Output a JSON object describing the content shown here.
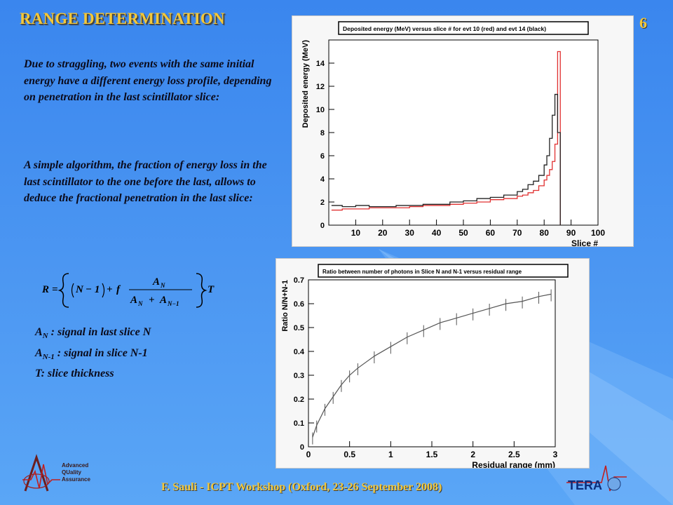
{
  "slide": {
    "title": "RANGE DETERMINATION",
    "number": "6",
    "paragraph1": "Due to straggling, two events with the same initial energy have a different energy loss profile, depending on penetration in the last scintillator slice:",
    "paragraph2": "A simple algorithm, the fraction of energy loss in the last scintillator to the one before the last, allows to deduce the fractional penetration in the last slice:",
    "formula": {
      "R": "R",
      "eq": "=",
      "N": "N",
      "minus1": "− 1",
      "plus": "+",
      "f": "f",
      "AN": "A",
      "ANsub": "N",
      "ANm1sub": "N−1",
      "T": "T"
    },
    "definitions": [
      {
        "sym": "A",
        "sub": "N",
        "text": " : signal in last slice N"
      },
      {
        "sym": "A",
        "sub": "N-1",
        "text": " : signal in slice N-1"
      },
      {
        "sym": "T",
        "sub": "",
        "text": ": slice thickness"
      }
    ],
    "footer": "F. Sauli - ICPT Workshop (Oxford, 23-26 September 2008)",
    "logo_left_text": [
      "Advanced",
      "QUality",
      "Assurance"
    ],
    "logo_right_text": "TERA"
  },
  "chart_data": [
    {
      "type": "line",
      "title": "Deposited energy (MeV) versus slice # for evt 10 (red) and evt 14 (black)",
      "xlabel": "Slice #",
      "ylabel": "Deposited energy (MeV)",
      "xlim": [
        0,
        100
      ],
      "ylim": [
        0,
        16
      ],
      "xticks": [
        10,
        20,
        30,
        40,
        50,
        60,
        70,
        80,
        90,
        100
      ],
      "yticks": [
        0,
        2,
        4,
        6,
        8,
        10,
        12,
        14
      ],
      "series": [
        {
          "color": "#e03030",
          "style": "step",
          "x": [
            1,
            5,
            10,
            15,
            20,
            25,
            30,
            35,
            40,
            45,
            50,
            55,
            60,
            65,
            70,
            72,
            74,
            76,
            78,
            80,
            81,
            82,
            83,
            84,
            85,
            86
          ],
          "y": [
            1.3,
            1.4,
            1.4,
            1.5,
            1.5,
            1.5,
            1.6,
            1.7,
            1.7,
            1.8,
            1.9,
            2.0,
            2.2,
            2.3,
            2.5,
            2.6,
            2.8,
            3.0,
            3.4,
            3.9,
            4.3,
            4.8,
            5.5,
            7.0,
            15.0,
            0
          ]
        },
        {
          "color": "#222222",
          "style": "step",
          "x": [
            1,
            5,
            10,
            15,
            20,
            25,
            30,
            35,
            40,
            45,
            50,
            55,
            60,
            65,
            70,
            72,
            74,
            76,
            78,
            80,
            81,
            82,
            83,
            84,
            85,
            86
          ],
          "y": [
            1.7,
            1.6,
            1.7,
            1.6,
            1.6,
            1.7,
            1.7,
            1.8,
            1.8,
            2.0,
            2.1,
            2.3,
            2.4,
            2.6,
            2.9,
            3.1,
            3.5,
            3.8,
            4.3,
            5.2,
            6.0,
            7.5,
            9.5,
            11.3,
            8.0,
            0
          ]
        }
      ]
    },
    {
      "type": "line",
      "title": "Ratio between number of photons in Slice N and N-1 versus residual range",
      "xlabel": "Residual range (mm)",
      "ylabel": "Ratio N/N+N-1",
      "xlim": [
        0,
        3
      ],
      "ylim": [
        0,
        0.7
      ],
      "xticks": [
        0,
        0.5,
        1,
        1.5,
        2,
        2.5,
        3
      ],
      "yticks": [
        0,
        0.1,
        0.2,
        0.3,
        0.4,
        0.5,
        0.6,
        0.7
      ],
      "series": [
        {
          "color": "#555555",
          "x": [
            0.05,
            0.1,
            0.2,
            0.3,
            0.4,
            0.5,
            0.6,
            0.8,
            1.0,
            1.2,
            1.4,
            1.6,
            1.8,
            2.0,
            2.2,
            2.4,
            2.6,
            2.8,
            2.95
          ],
          "y": [
            0.04,
            0.09,
            0.16,
            0.21,
            0.26,
            0.3,
            0.33,
            0.38,
            0.42,
            0.46,
            0.49,
            0.52,
            0.54,
            0.56,
            0.58,
            0.6,
            0.61,
            0.63,
            0.64
          ]
        }
      ]
    }
  ]
}
